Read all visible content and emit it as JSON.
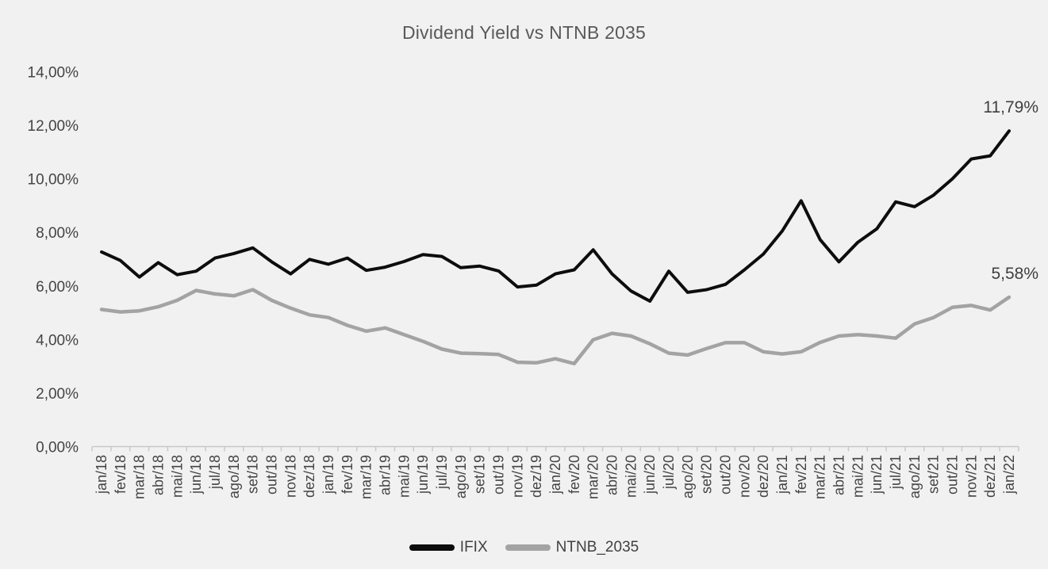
{
  "chart_data": {
    "type": "line",
    "title": "Dividend Yield vs NTNB 2035",
    "categories": [
      "jan/18",
      "fev/18",
      "mar/18",
      "abr/18",
      "mai/18",
      "jun/18",
      "jul/18",
      "ago/18",
      "set/18",
      "out/18",
      "nov/18",
      "dez/18",
      "jan/19",
      "fev/19",
      "mar/19",
      "abr/19",
      "mai/19",
      "jun/19",
      "jul/19",
      "ago/19",
      "set/19",
      "out/19",
      "nov/19",
      "dez/19",
      "jan/20",
      "fev/20",
      "mar/20",
      "abr/20",
      "mai/20",
      "jun/20",
      "jul/20",
      "ago/20",
      "set/20",
      "out/20",
      "nov/20",
      "dez/20",
      "jan/21",
      "fev/21",
      "mar/21",
      "abr/21",
      "mai/21",
      "jun/21",
      "jul/21",
      "ago/21",
      "set/21",
      "out/21",
      "nov/21",
      "dez/21",
      "jan/22"
    ],
    "series": [
      {
        "name": "IFIX",
        "color": "#0d0d0d",
        "stroke_width": 4,
        "end_label": "11,79%",
        "values": [
          7.27,
          6.95,
          6.33,
          6.87,
          6.42,
          6.55,
          7.04,
          7.21,
          7.42,
          6.9,
          6.45,
          6.99,
          6.81,
          7.04,
          6.58,
          6.7,
          6.91,
          7.17,
          7.1,
          6.68,
          6.74,
          6.56,
          5.96,
          6.03,
          6.45,
          6.6,
          7.35,
          6.45,
          5.81,
          5.43,
          6.55,
          5.76,
          5.86,
          6.06,
          6.6,
          7.19,
          8.05,
          9.18,
          7.73,
          6.9,
          7.63,
          8.13,
          9.14,
          8.96,
          9.39,
          10.0,
          10.74,
          10.86,
          11.79
        ]
      },
      {
        "name": "NTNB_2035",
        "color": "#a3a3a3",
        "stroke_width": 4.5,
        "end_label": "5,58%",
        "values": [
          5.12,
          5.03,
          5.07,
          5.22,
          5.46,
          5.83,
          5.7,
          5.63,
          5.86,
          5.46,
          5.17,
          4.92,
          4.82,
          4.53,
          4.31,
          4.43,
          4.18,
          3.93,
          3.64,
          3.49,
          3.47,
          3.44,
          3.15,
          3.13,
          3.28,
          3.1,
          3.99,
          4.23,
          4.13,
          3.84,
          3.49,
          3.42,
          3.66,
          3.88,
          3.88,
          3.54,
          3.46,
          3.54,
          3.89,
          4.13,
          4.18,
          4.13,
          4.05,
          4.58,
          4.82,
          5.2,
          5.27,
          5.1,
          5.58
        ]
      }
    ],
    "y_axis": {
      "min": 0,
      "max": 14,
      "tick_values": [
        0,
        2,
        4,
        6,
        8,
        10,
        12,
        14
      ],
      "tick_labels": [
        "0,00%",
        "2,00%",
        "4,00%",
        "6,00%",
        "8,00%",
        "10,00%",
        "12,00%",
        "14,00%"
      ]
    },
    "grid": false,
    "legend_position": "bottom",
    "colors": {
      "background": "#f1f1f1",
      "axis_line": "#c9c9c9",
      "axis_text": "#444444",
      "title_text": "#595959",
      "data_label_text": "#3f3f3f"
    }
  }
}
